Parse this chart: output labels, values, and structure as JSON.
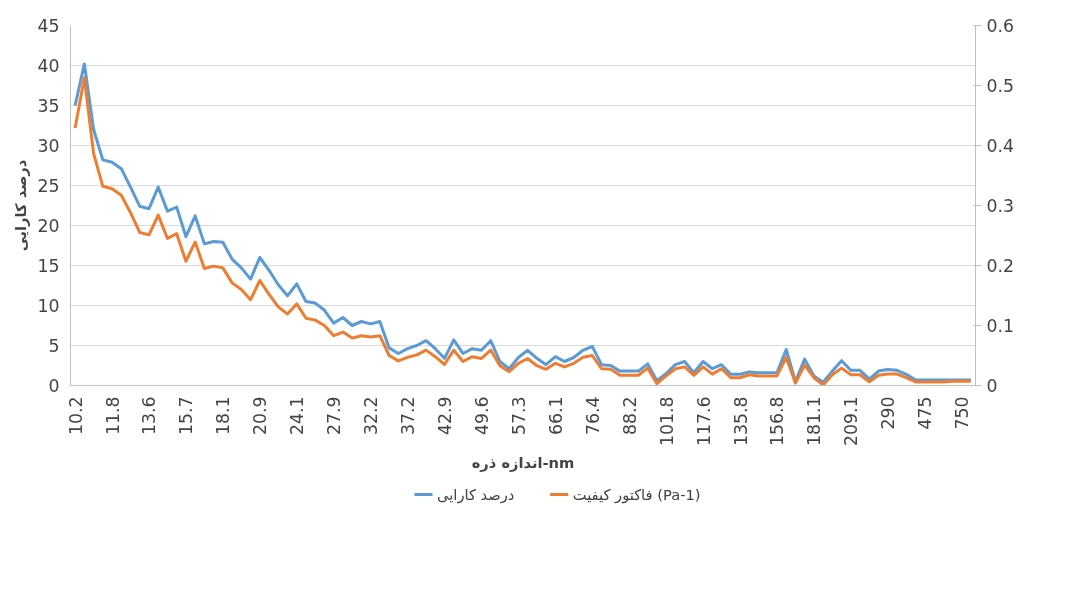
{
  "chart_data": {
    "type": "line",
    "xlabel": "اندازه ذره-nm",
    "ylabel": "درصد کارایی",
    "categories": [
      "10.2",
      null,
      null,
      null,
      "11.8",
      null,
      null,
      null,
      "13.6",
      null,
      null,
      null,
      "15.7",
      null,
      null,
      null,
      "18.1",
      null,
      null,
      null,
      "20.9",
      null,
      null,
      null,
      "24.1",
      null,
      null,
      null,
      "27.9",
      null,
      null,
      null,
      "32.2",
      null,
      null,
      null,
      "37.2",
      null,
      null,
      null,
      "42.9",
      null,
      null,
      null,
      "49.6",
      null,
      null,
      null,
      "57.3",
      null,
      null,
      null,
      "66.1",
      null,
      null,
      null,
      "76.4",
      null,
      null,
      null,
      "88.2",
      null,
      null,
      null,
      "101.8",
      null,
      null,
      null,
      "117.6",
      null,
      null,
      null,
      "135.8",
      null,
      null,
      null,
      "156.8",
      null,
      null,
      null,
      "181.1",
      null,
      null,
      null,
      "209.1",
      null,
      null,
      null,
      "290",
      null,
      null,
      null,
      "475",
      null,
      null,
      null,
      "750",
      null
    ],
    "series": [
      {
        "name": "درصد کارایی",
        "color": "#5b9bd5",
        "values": [
          35.0,
          40.2,
          32.0,
          28.2,
          27.9,
          27.1,
          24.8,
          22.4,
          22.1,
          24.8,
          21.8,
          22.3,
          18.6,
          21.2,
          17.7,
          18.0,
          17.9,
          15.8,
          14.7,
          13.3,
          16.0,
          14.4,
          12.6,
          11.2,
          12.7,
          10.5,
          10.3,
          9.4,
          7.8,
          8.5,
          7.5,
          8.0,
          7.7,
          8.0,
          4.7,
          4.0,
          4.6,
          5.0,
          5.6,
          4.6,
          3.4,
          5.7,
          4.0,
          4.6,
          4.4,
          5.6,
          3.0,
          2.1,
          3.5,
          4.4,
          3.4,
          2.6,
          3.6,
          3.0,
          3.5,
          4.4,
          4.9,
          2.6,
          2.5,
          1.8,
          1.8,
          1.8,
          2.7,
          0.6,
          1.5,
          2.6,
          3.0,
          1.6,
          3.0,
          2.1,
          2.6,
          1.4,
          1.4,
          1.7,
          1.6,
          1.6,
          1.6,
          4.5,
          0.5,
          3.3,
          1.2,
          0.4,
          1.8,
          3.1,
          1.9,
          1.9,
          0.8,
          1.8,
          2.0,
          1.9,
          1.4,
          0.7,
          0.7,
          0.7,
          0.7,
          0.7,
          0.7,
          0.7
        ]
      },
      {
        "name": "فاکتور کیفیت (Pa-1)",
        "color": "#ed7d31",
        "axis": "y2",
        "values": [
          0.429,
          0.513,
          0.387,
          0.332,
          0.328,
          0.317,
          0.288,
          0.255,
          0.251,
          0.284,
          0.245,
          0.253,
          0.207,
          0.239,
          0.195,
          0.199,
          0.196,
          0.171,
          0.16,
          0.143,
          0.175,
          0.152,
          0.131,
          0.119,
          0.136,
          0.112,
          0.109,
          0.1,
          0.083,
          0.089,
          0.079,
          0.083,
          0.081,
          0.083,
          0.05,
          0.041,
          0.047,
          0.051,
          0.059,
          0.048,
          0.035,
          0.059,
          0.04,
          0.048,
          0.045,
          0.059,
          0.033,
          0.023,
          0.037,
          0.045,
          0.033,
          0.027,
          0.037,
          0.031,
          0.037,
          0.047,
          0.05,
          0.028,
          0.027,
          0.017,
          0.017,
          0.017,
          0.029,
          0.003,
          0.016,
          0.028,
          0.031,
          0.017,
          0.031,
          0.019,
          0.028,
          0.013,
          0.013,
          0.018,
          0.016,
          0.016,
          0.016,
          0.047,
          0.004,
          0.034,
          0.013,
          0.001,
          0.018,
          0.029,
          0.018,
          0.018,
          0.006,
          0.017,
          0.019,
          0.019,
          0.013,
          0.006,
          0.006,
          0.006,
          0.006,
          0.007,
          0.007,
          0.007
        ]
      }
    ],
    "ylim": [
      0,
      45
    ],
    "yticks": [
      0,
      5,
      10,
      15,
      20,
      25,
      30,
      35,
      40,
      45
    ],
    "y2lim": [
      0,
      0.6
    ],
    "y2ticks": [
      0,
      0.1,
      0.2,
      0.3,
      0.4,
      0.5,
      0.6
    ],
    "grid": "y",
    "legend": "bottom",
    "line_style": "solid",
    "marker": "none"
  }
}
